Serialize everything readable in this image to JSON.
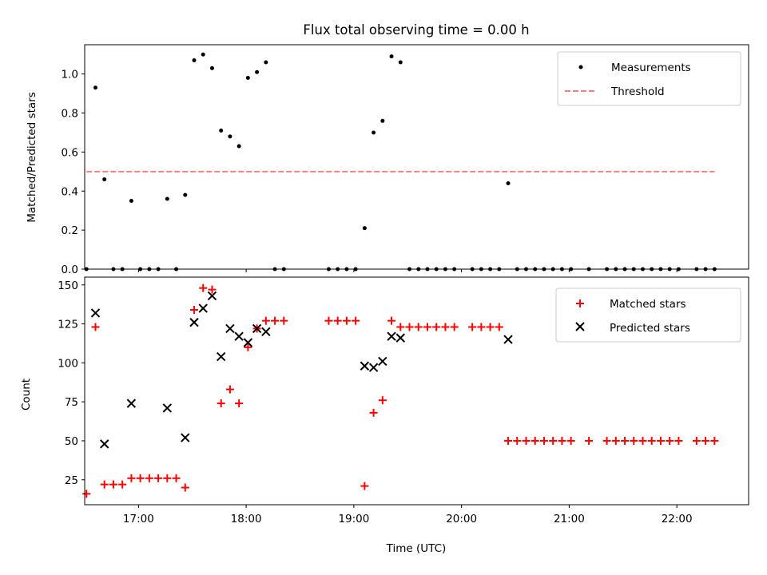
{
  "chart_data": [
    {
      "type": "scatter",
      "title": "Flux total observing time = 0.00 h",
      "xlabel": "",
      "ylabel": "Matched/Predicted stars",
      "xlim": [
        "16:30",
        "22:40"
      ],
      "ylim": [
        0,
        1.15
      ],
      "yticks": [
        "0.0",
        "0.2",
        "0.4",
        "0.6",
        "0.8",
        "1.0"
      ],
      "legend_position": "top-right",
      "series": [
        {
          "name": "Measurements",
          "color": "#000000",
          "marker": "dot",
          "points": [
            [
              "16:31",
              0.0
            ],
            [
              "16:36",
              0.93
            ],
            [
              "16:41",
              0.46
            ],
            [
              "16:46",
              0.0
            ],
            [
              "16:51",
              0.0
            ],
            [
              "16:56",
              0.35
            ],
            [
              "17:01",
              0.0
            ],
            [
              "17:06",
              0.0
            ],
            [
              "17:11",
              0.0
            ],
            [
              "17:16",
              0.36
            ],
            [
              "17:21",
              0.0
            ],
            [
              "17:26",
              0.38
            ],
            [
              "17:31",
              1.07
            ],
            [
              "17:36",
              1.1
            ],
            [
              "17:41",
              1.03
            ],
            [
              "17:46",
              0.71
            ],
            [
              "17:51",
              0.68
            ],
            [
              "17:56",
              0.63
            ],
            [
              "18:01",
              0.98
            ],
            [
              "18:06",
              1.01
            ],
            [
              "18:11",
              1.06
            ],
            [
              "18:16",
              0.0
            ],
            [
              "18:21",
              0.0
            ],
            [
              "18:46",
              0.0
            ],
            [
              "18:51",
              0.0
            ],
            [
              "18:56",
              0.0
            ],
            [
              "19:01",
              0.0
            ],
            [
              "19:06",
              0.21
            ],
            [
              "19:11",
              0.7
            ],
            [
              "19:16",
              0.76
            ],
            [
              "19:21",
              1.09
            ],
            [
              "19:26",
              1.06
            ],
            [
              "19:31",
              0.0
            ],
            [
              "19:36",
              0.0
            ],
            [
              "19:41",
              0.0
            ],
            [
              "19:46",
              0.0
            ],
            [
              "19:51",
              0.0
            ],
            [
              "19:56",
              0.0
            ],
            [
              "20:06",
              0.0
            ],
            [
              "20:11",
              0.0
            ],
            [
              "20:16",
              0.0
            ],
            [
              "20:21",
              0.0
            ],
            [
              "20:26",
              0.44
            ],
            [
              "20:31",
              0.0
            ],
            [
              "20:36",
              0.0
            ],
            [
              "20:41",
              0.0
            ],
            [
              "20:46",
              0.0
            ],
            [
              "20:51",
              0.0
            ],
            [
              "20:56",
              0.0
            ],
            [
              "21:01",
              0.0
            ],
            [
              "21:11",
              0.0
            ],
            [
              "21:21",
              0.0
            ],
            [
              "21:26",
              0.0
            ],
            [
              "21:31",
              0.0
            ],
            [
              "21:36",
              0.0
            ],
            [
              "21:41",
              0.0
            ],
            [
              "21:46",
              0.0
            ],
            [
              "21:51",
              0.0
            ],
            [
              "21:56",
              0.0
            ],
            [
              "22:01",
              0.0
            ],
            [
              "22:11",
              0.0
            ],
            [
              "22:16",
              0.0
            ],
            [
              "22:21",
              0.0
            ]
          ]
        },
        {
          "name": "Threshold",
          "color": "#ff7f7f",
          "marker": "dashed-line",
          "points": [
            [
              "16:31",
              0.5
            ],
            [
              "22:21",
              0.5
            ]
          ]
        }
      ]
    },
    {
      "type": "scatter",
      "title": "",
      "xlabel": "Time (UTC)",
      "ylabel": "Count",
      "xlim": [
        "16:30",
        "22:40"
      ],
      "ylim": [
        9,
        155
      ],
      "xticks": [
        "17:00",
        "18:00",
        "19:00",
        "20:00",
        "21:00",
        "22:00"
      ],
      "yticks": [
        "25",
        "50",
        "75",
        "100",
        "125",
        "150"
      ],
      "legend_position": "top-right",
      "series": [
        {
          "name": "Matched stars",
          "color": "#ff0000",
          "marker": "plus",
          "points": [
            [
              "16:31",
              16
            ],
            [
              "16:36",
              123
            ],
            [
              "16:41",
              22
            ],
            [
              "16:46",
              22
            ],
            [
              "16:51",
              22
            ],
            [
              "16:56",
              26
            ],
            [
              "17:01",
              26
            ],
            [
              "17:06",
              26
            ],
            [
              "17:11",
              26
            ],
            [
              "17:16",
              26
            ],
            [
              "17:21",
              26
            ],
            [
              "17:26",
              20
            ],
            [
              "17:31",
              134
            ],
            [
              "17:36",
              148
            ],
            [
              "17:41",
              147
            ],
            [
              "17:46",
              74
            ],
            [
              "17:51",
              83
            ],
            [
              "17:56",
              74
            ],
            [
              "18:01",
              110
            ],
            [
              "18:06",
              122
            ],
            [
              "18:11",
              127
            ],
            [
              "18:16",
              127
            ],
            [
              "18:21",
              127
            ],
            [
              "18:46",
              127
            ],
            [
              "18:51",
              127
            ],
            [
              "18:56",
              127
            ],
            [
              "19:01",
              127
            ],
            [
              "19:06",
              21
            ],
            [
              "19:11",
              68
            ],
            [
              "19:16",
              76
            ],
            [
              "19:21",
              127
            ],
            [
              "19:26",
              123
            ],
            [
              "19:31",
              123
            ],
            [
              "19:36",
              123
            ],
            [
              "19:41",
              123
            ],
            [
              "19:46",
              123
            ],
            [
              "19:51",
              123
            ],
            [
              "19:56",
              123
            ],
            [
              "20:06",
              123
            ],
            [
              "20:11",
              123
            ],
            [
              "20:16",
              123
            ],
            [
              "20:21",
              123
            ],
            [
              "20:26",
              50
            ],
            [
              "20:31",
              50
            ],
            [
              "20:36",
              50
            ],
            [
              "20:41",
              50
            ],
            [
              "20:46",
              50
            ],
            [
              "20:51",
              50
            ],
            [
              "20:56",
              50
            ],
            [
              "21:01",
              50
            ],
            [
              "21:11",
              50
            ],
            [
              "21:21",
              50
            ],
            [
              "21:26",
              50
            ],
            [
              "21:31",
              50
            ],
            [
              "21:36",
              50
            ],
            [
              "21:41",
              50
            ],
            [
              "21:46",
              50
            ],
            [
              "21:51",
              50
            ],
            [
              "21:56",
              50
            ],
            [
              "22:01",
              50
            ],
            [
              "22:11",
              50
            ],
            [
              "22:16",
              50
            ],
            [
              "22:21",
              50
            ]
          ]
        },
        {
          "name": "Predicted stars",
          "color": "#000000",
          "marker": "x",
          "points": [
            [
              "16:36",
              132
            ],
            [
              "16:41",
              48
            ],
            [
              "16:56",
              74
            ],
            [
              "17:16",
              71
            ],
            [
              "17:26",
              52
            ],
            [
              "17:31",
              126
            ],
            [
              "17:36",
              135
            ],
            [
              "17:41",
              143
            ],
            [
              "17:46",
              104
            ],
            [
              "17:51",
              122
            ],
            [
              "17:56",
              117
            ],
            [
              "18:01",
              113
            ],
            [
              "18:06",
              122
            ],
            [
              "18:11",
              120
            ],
            [
              "19:06",
              98
            ],
            [
              "19:11",
              97
            ],
            [
              "19:16",
              101
            ],
            [
              "19:21",
              117
            ],
            [
              "19:26",
              116
            ],
            [
              "20:26",
              115
            ]
          ]
        }
      ]
    }
  ]
}
